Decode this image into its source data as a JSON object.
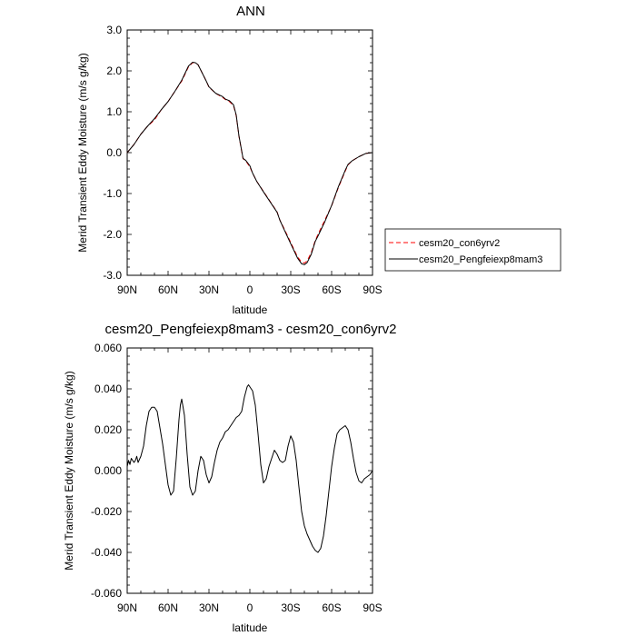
{
  "chart_data": [
    {
      "type": "line",
      "title": "ANN",
      "xlabel": "latitude",
      "ylabel": "Merid Transient Eddy Moisture (m/s g/kg)",
      "xlim": [
        90,
        -90
      ],
      "ylim": [
        -3.0,
        3.0
      ],
      "x_ticks": [
        90,
        60,
        30,
        0,
        -30,
        -60,
        -90
      ],
      "x_tick_labels": [
        "90N",
        "60N",
        "30N",
        "0",
        "30S",
        "60S",
        "90S"
      ],
      "y_ticks": [
        3.0,
        2.0,
        1.0,
        0.0,
        -1.0,
        -2.0,
        -3.0
      ],
      "y_tick_labels": [
        "3.0",
        "2.0",
        "1.0",
        "0.0",
        "-1.0",
        "-2.0",
        "-3.0"
      ],
      "grid": false,
      "legend_position": "right, outside plot",
      "series": [
        {
          "name": "cesm20_con6yrv2",
          "color": "#ff0000",
          "style": "dashed",
          "x": [
            90,
            85,
            80,
            75,
            70,
            65,
            60,
            55,
            50,
            45,
            42,
            40,
            38,
            35,
            32,
            30,
            25,
            20,
            18,
            15,
            12,
            10,
            8,
            5,
            3,
            0,
            -2,
            -5,
            -10,
            -15,
            -20,
            -22,
            -25,
            -30,
            -35,
            -38,
            -40,
            -42,
            -45,
            -48,
            -50,
            -55,
            -60,
            -65,
            -70,
            -72,
            -75,
            -80,
            -85,
            -90
          ],
          "y": [
            0.0,
            0.2,
            0.45,
            0.65,
            0.8,
            1.05,
            1.25,
            1.5,
            1.75,
            2.1,
            2.2,
            2.2,
            2.15,
            1.95,
            1.75,
            1.6,
            1.45,
            1.35,
            1.3,
            1.25,
            1.15,
            0.9,
            0.4,
            -0.15,
            -0.2,
            -0.35,
            -0.5,
            -0.7,
            -0.95,
            -1.2,
            -1.45,
            -1.65,
            -1.85,
            -2.2,
            -2.55,
            -2.68,
            -2.7,
            -2.65,
            -2.45,
            -2.15,
            -2.0,
            -1.65,
            -1.3,
            -0.85,
            -0.45,
            -0.3,
            -0.2,
            -0.1,
            -0.02,
            0.0
          ]
        },
        {
          "name": "cesm20_Pengfeiexp8mam3",
          "color": "#000000",
          "style": "solid",
          "x": [
            90,
            85,
            80,
            75,
            70,
            65,
            60,
            55,
            50,
            45,
            42,
            40,
            38,
            35,
            32,
            30,
            25,
            20,
            18,
            15,
            12,
            10,
            8,
            5,
            3,
            0,
            -2,
            -5,
            -10,
            -15,
            -20,
            -22,
            -25,
            -30,
            -35,
            -38,
            -40,
            -42,
            -45,
            -48,
            -50,
            -55,
            -60,
            -65,
            -70,
            -72,
            -75,
            -80,
            -85,
            -90
          ],
          "y": [
            0.0,
            0.2,
            0.45,
            0.65,
            0.83,
            1.05,
            1.25,
            1.5,
            1.77,
            2.12,
            2.21,
            2.2,
            2.15,
            1.95,
            1.75,
            1.61,
            1.45,
            1.37,
            1.31,
            1.27,
            1.17,
            0.92,
            0.41,
            -0.14,
            -0.19,
            -0.32,
            -0.5,
            -0.7,
            -0.96,
            -1.21,
            -1.46,
            -1.65,
            -1.87,
            -2.23,
            -2.58,
            -2.72,
            -2.74,
            -2.69,
            -2.49,
            -2.17,
            -2.04,
            -1.69,
            -1.29,
            -0.83,
            -0.43,
            -0.29,
            -0.2,
            -0.1,
            -0.02,
            0.0
          ]
        }
      ]
    },
    {
      "type": "line",
      "title": "cesm20_Pengfeiexp8mam3 - cesm20_con6yrv2",
      "xlabel": "latitude",
      "ylabel": "Merid Transient Eddy Moisture (m/s g/kg)",
      "xlim": [
        90,
        -90
      ],
      "ylim": [
        -0.06,
        0.06
      ],
      "x_ticks": [
        90,
        60,
        30,
        0,
        -30,
        -60,
        -90
      ],
      "x_tick_labels": [
        "90N",
        "60N",
        "30N",
        "0",
        "30S",
        "60S",
        "90S"
      ],
      "y_ticks": [
        0.06,
        0.04,
        0.02,
        0.0,
        -0.02,
        -0.04,
        -0.06
      ],
      "y_tick_labels": [
        "0.060",
        "0.040",
        "0.020",
        "0.000",
        "-0.020",
        "-0.040",
        "-0.060"
      ],
      "grid": false,
      "series": [
        {
          "color": "#000000",
          "style": "solid",
          "x": [
            90,
            89,
            88,
            87,
            86,
            85,
            84,
            83,
            82,
            80,
            78,
            76,
            74,
            72,
            70,
            68,
            66,
            64,
            62,
            60,
            58,
            56,
            54,
            52,
            51,
            50,
            48,
            46,
            44,
            42,
            40,
            38,
            36,
            34,
            32,
            30,
            28,
            26,
            24,
            22,
            20,
            18,
            16,
            14,
            12,
            10,
            8,
            6,
            4,
            2,
            1,
            0,
            -1,
            -2,
            -4,
            -6,
            -8,
            -10,
            -12,
            -14,
            -16,
            -18,
            -20,
            -22,
            -24,
            -26,
            -28,
            -30,
            -32,
            -34,
            -36,
            -38,
            -40,
            -42,
            -44,
            -46,
            -48,
            -50,
            -52,
            -54,
            -56,
            -58,
            -60,
            -62,
            -64,
            -66,
            -68,
            -70,
            -72,
            -74,
            -76,
            -78,
            -80,
            -82,
            -84,
            -86,
            -88,
            -90
          ],
          "y": [
            0.002,
            0.005,
            0.003,
            0.006,
            0.005,
            0.004,
            0.005,
            0.007,
            0.004,
            0.007,
            0.012,
            0.022,
            0.029,
            0.031,
            0.031,
            0.029,
            0.021,
            0.013,
            0.003,
            -0.007,
            -0.012,
            -0.01,
            0.006,
            0.025,
            0.032,
            0.035,
            0.027,
            0.008,
            -0.008,
            -0.012,
            -0.01,
            0.0,
            0.007,
            0.005,
            -0.002,
            -0.006,
            -0.003,
            0.004,
            0.01,
            0.014,
            0.016,
            0.019,
            0.02,
            0.022,
            0.024,
            0.026,
            0.027,
            0.029,
            0.036,
            0.041,
            0.042,
            0.041,
            0.04,
            0.039,
            0.032,
            0.018,
            0.003,
            -0.006,
            -0.004,
            0.002,
            0.006,
            0.01,
            0.008,
            0.005,
            0.004,
            0.005,
            0.012,
            0.017,
            0.014,
            0.005,
            -0.008,
            -0.02,
            -0.027,
            -0.031,
            -0.034,
            -0.037,
            -0.039,
            -0.04,
            -0.038,
            -0.032,
            -0.022,
            -0.01,
            0.002,
            0.011,
            0.018,
            0.02,
            0.021,
            0.022,
            0.02,
            0.014,
            0.006,
            -0.001,
            -0.005,
            -0.006,
            -0.004,
            -0.003,
            -0.002,
            0.0
          ]
        }
      ]
    }
  ]
}
